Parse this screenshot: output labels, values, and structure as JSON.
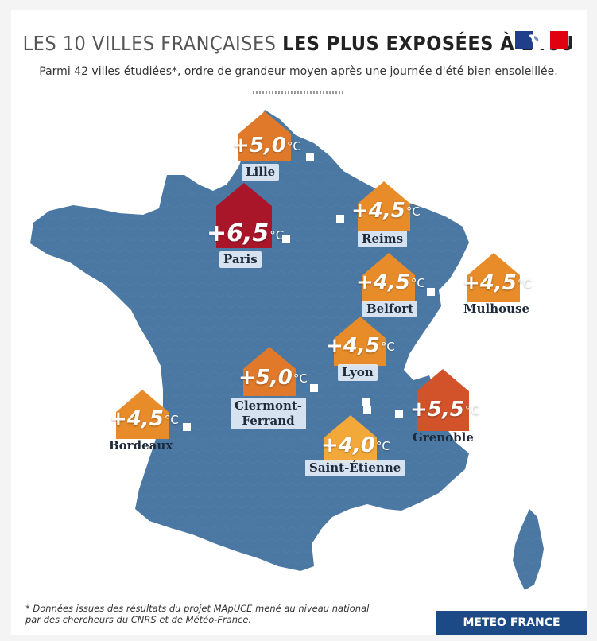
{
  "title": {
    "light": "LES 10 VILLES FRANÇAISES",
    "bold": "LES PLUS EXPOSÉES À L'ICU"
  },
  "subtitle": "Parmi 42 villes étudiées*, ordre de grandeur moyen après une journée d'été bien ensoleillée.",
  "colors": {
    "map": "#4a78a3",
    "map_dark": "#3f6b95",
    "paris": "#a9162a",
    "orange": "#e88c2a",
    "light_orange": "#f3a83a",
    "grenoble": "#d2522a",
    "lille": "#e07a2a"
  },
  "cities": [
    {
      "name": "Lille",
      "value": "+5,0",
      "unit": "°C",
      "color": "#e07a2a"
    },
    {
      "name": "Paris",
      "value": "+6,5",
      "unit": "°C",
      "color": "#a9162a"
    },
    {
      "name": "Reims",
      "value": "+4,5",
      "unit": "°C",
      "color": "#e88c2a"
    },
    {
      "name": "Belfort",
      "value": "+4,5",
      "unit": "°C",
      "color": "#e88c2a"
    },
    {
      "name": "Mulhouse",
      "value": "+4,5",
      "unit": "°C",
      "color": "#e88c2a"
    },
    {
      "name": "Lyon",
      "value": "+4,5",
      "unit": "°C",
      "color": "#e88c2a"
    },
    {
      "name": "Clermont-\nFerrand",
      "value": "+5,0",
      "unit": "°C",
      "color": "#e07a2a"
    },
    {
      "name": "Bordeaux",
      "value": "+4,5",
      "unit": "°C",
      "color": "#e88c2a"
    },
    {
      "name": "Grenoble",
      "value": "+5,5",
      "unit": "°C",
      "color": "#d2522a"
    },
    {
      "name": "Saint-Étienne",
      "value": "+4,0",
      "unit": "°C",
      "color": "#f3a83a"
    }
  ],
  "footnote": {
    "line1": "* Données issues des résultats du projet MApUCE mené au niveau national",
    "line2": "par des chercheurs du CNRS et de Météo-France."
  },
  "brand": "METEO FRANCE",
  "icons": {
    "flag": "french-republic-logo-icon",
    "pin": "city-location-icon"
  }
}
